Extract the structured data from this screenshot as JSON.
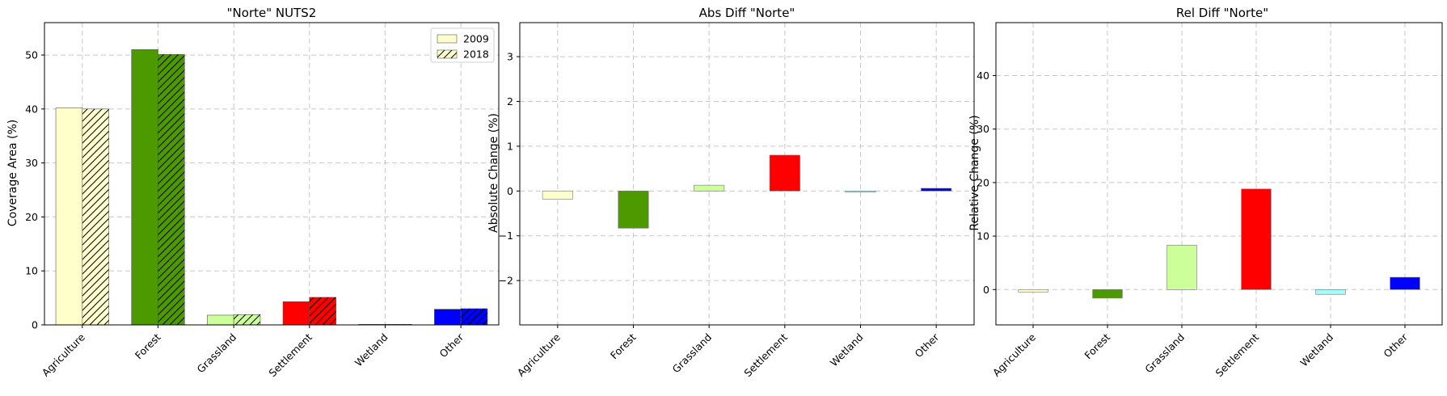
{
  "chart_data": [
    {
      "type": "bar",
      "title": "\"Norte\" NUTS2",
      "xlabel": "",
      "ylabel": "Coverage Area (%)",
      "categories": [
        "Agriculture",
        "Forest",
        "Grassland",
        "Settlement",
        "Wetland",
        "Other"
      ],
      "ylim": [
        0,
        56
      ],
      "yticks": [
        0,
        10,
        20,
        30,
        40,
        50
      ],
      "grid": true,
      "legend_position": "top-right",
      "category_colors": [
        "#ffffcc",
        "#4c9900",
        "#ccff99",
        "#ff0000",
        "#99ffff",
        "#0000ff"
      ],
      "series": [
        {
          "name": "2009",
          "hatch": false,
          "values": [
            40.2,
            51.0,
            1.8,
            4.3,
            0.1,
            2.9
          ]
        },
        {
          "name": "2018",
          "hatch": true,
          "values": [
            40.0,
            50.1,
            1.9,
            5.1,
            0.1,
            3.0
          ]
        }
      ]
    },
    {
      "type": "bar",
      "title": "Abs Diff \"Norte\"",
      "xlabel": "",
      "ylabel": "Absolute Change (%)",
      "categories": [
        "Agriculture",
        "Forest",
        "Grassland",
        "Settlement",
        "Wetland",
        "Other"
      ],
      "ylim": [
        -2.99,
        3.76
      ],
      "yticks": [
        -2,
        -1,
        0,
        1,
        2,
        3
      ],
      "ytick_labels": [
        "−2",
        "−1",
        "0",
        "1",
        "2",
        "3"
      ],
      "grid": true,
      "category_colors": [
        "#ffffcc",
        "#4c9900",
        "#ccff99",
        "#ff0000",
        "#99ffff",
        "#0000ff"
      ],
      "values": [
        -0.18,
        -0.83,
        0.13,
        0.8,
        -0.02,
        0.06
      ]
    },
    {
      "type": "bar",
      "title": "Rel Diff \"Norte\"",
      "xlabel": "",
      "ylabel": "Relative Change (%)",
      "categories": [
        "Agriculture",
        "Forest",
        "Grassland",
        "Settlement",
        "Wetland",
        "Other"
      ],
      "ylim": [
        -6.6,
        49.9
      ],
      "yticks": [
        0,
        10,
        20,
        30,
        40
      ],
      "grid": true,
      "category_colors": [
        "#ffffcc",
        "#4c9900",
        "#ccff99",
        "#ff0000",
        "#99ffff",
        "#0000ff"
      ],
      "values": [
        -0.45,
        -1.6,
        8.3,
        18.8,
        -0.9,
        2.3
      ]
    }
  ]
}
